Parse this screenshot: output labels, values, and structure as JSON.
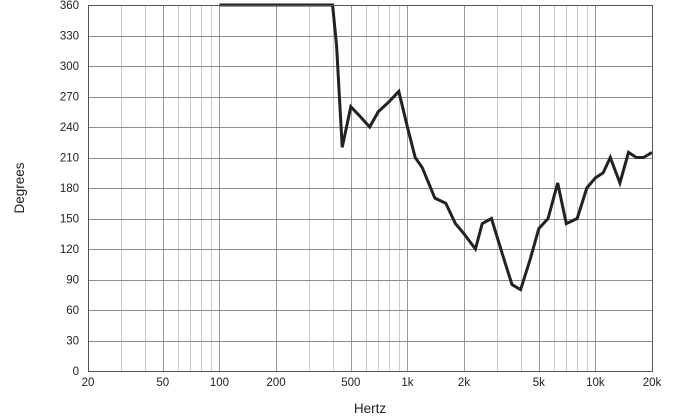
{
  "chart_data": {
    "type": "line",
    "title": "",
    "xlabel": "Hertz",
    "ylabel": "Degrees",
    "x_scale": "log",
    "xlim": [
      20,
      20000
    ],
    "ylim": [
      0,
      360
    ],
    "grid": true,
    "legend": "none",
    "x_major_ticks": [
      20,
      50,
      100,
      200,
      500,
      1000,
      2000,
      5000,
      10000,
      20000
    ],
    "x_tick_labels": [
      "20",
      "50",
      "100",
      "200",
      "500",
      "1k",
      "2k",
      "5k",
      "10k",
      "20k"
    ],
    "y_ticks": [
      0,
      30,
      60,
      90,
      120,
      150,
      180,
      210,
      240,
      270,
      300,
      330,
      360
    ],
    "y_tick_labels": [
      "0",
      "30",
      "60",
      "90",
      "120",
      "150",
      "180",
      "210",
      "240",
      "270",
      "300",
      "330",
      "360"
    ],
    "colors": {
      "line": "#222222",
      "grid": "#a6a6a6",
      "frame": "#555555"
    },
    "series": [
      {
        "x": [
          100,
          200,
          300,
          400,
          420,
          450,
          500,
          550,
          630,
          700,
          800,
          900,
          1000,
          1100,
          1200,
          1400,
          1600,
          1800,
          2000,
          2300,
          2500,
          2800,
          3200,
          3600,
          4000,
          4500,
          5000,
          5600,
          6300,
          7000,
          8000,
          9000,
          10000,
          11000,
          12000,
          13500,
          15000,
          16500,
          18000,
          20000
        ],
        "values": [
          360,
          360,
          360,
          360,
          320,
          220,
          260,
          252,
          240,
          255,
          265,
          275,
          240,
          210,
          200,
          170,
          165,
          145,
          135,
          120,
          145,
          150,
          115,
          85,
          80,
          110,
          140,
          150,
          185,
          145,
          150,
          180,
          190,
          195,
          210,
          185,
          215,
          210,
          210,
          215
        ]
      }
    ]
  }
}
